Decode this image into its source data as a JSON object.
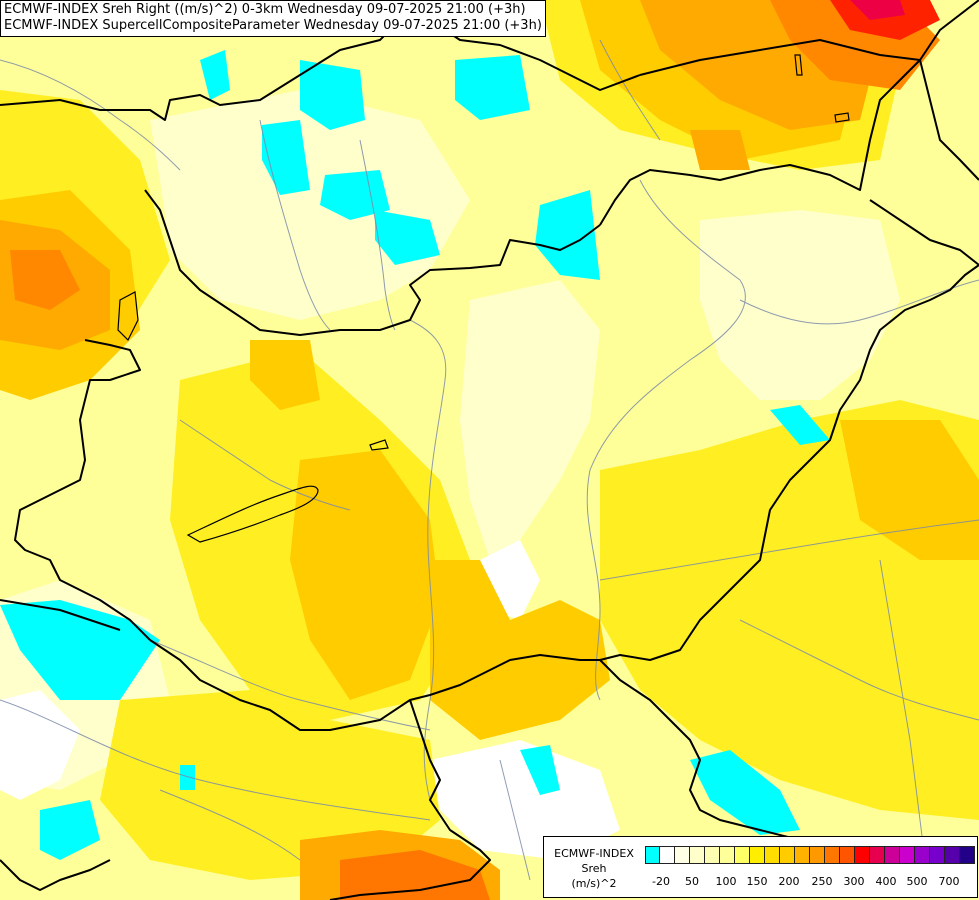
{
  "title": {
    "line1": "ECMWF-INDEX Sreh Right ((m/s)^2) 0-3km Wednesday 09-07-2025 21:00 (+3h)",
    "line2": "ECMWF-INDEX SupercellCompositeParameter Wednesday 09-07-2025 21:00 (+3h)"
  },
  "legend": {
    "model": "ECMWF-INDEX",
    "parameter": "Sreh",
    "unit": "(m/s)^2",
    "colors": [
      "#00ffff",
      "#ffffff",
      "#ffffe6",
      "#ffffcc",
      "#ffffb3",
      "#ffff99",
      "#ffff66",
      "#ffee00",
      "#ffdd00",
      "#ffcc00",
      "#ffb300",
      "#ff9900",
      "#ff7700",
      "#ff5500",
      "#ff0000",
      "#e6004d",
      "#cc0099",
      "#cc00cc",
      "#9900cc",
      "#7700cc",
      "#5500aa",
      "#220088"
    ],
    "ticks": [
      "-20",
      "50",
      "100",
      "150",
      "200",
      "250",
      "300",
      "400",
      "500",
      "700"
    ]
  },
  "palette": {
    "cyan": "#00ffff",
    "pale": "#ffffcc",
    "light_yellow": "#ffff99",
    "yellow": "#ffee22",
    "gold": "#ffcc00",
    "orange": "#ffaa00",
    "deep_orange": "#ff8800",
    "red": "#ff2200",
    "magenta": "#ee0044"
  }
}
